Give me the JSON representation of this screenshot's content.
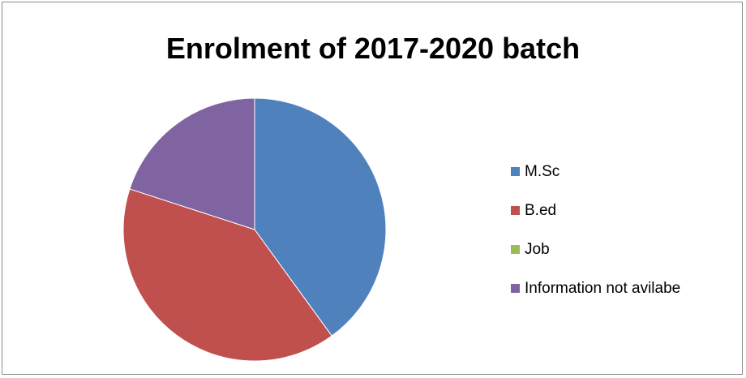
{
  "chart_data": {
    "type": "pie",
    "title": "Enrolment of 2017-2020 batch",
    "categories": [
      "M.Sc",
      "B.ed",
      "Job",
      "Information not avilabe"
    ],
    "values": [
      40,
      40,
      0,
      20
    ],
    "colors": [
      "#4f81bd",
      "#c0504d",
      "#9bbb59",
      "#8064a2"
    ],
    "legend_position": "right",
    "start_angle": "12 o'clock",
    "direction": "clockwise"
  }
}
